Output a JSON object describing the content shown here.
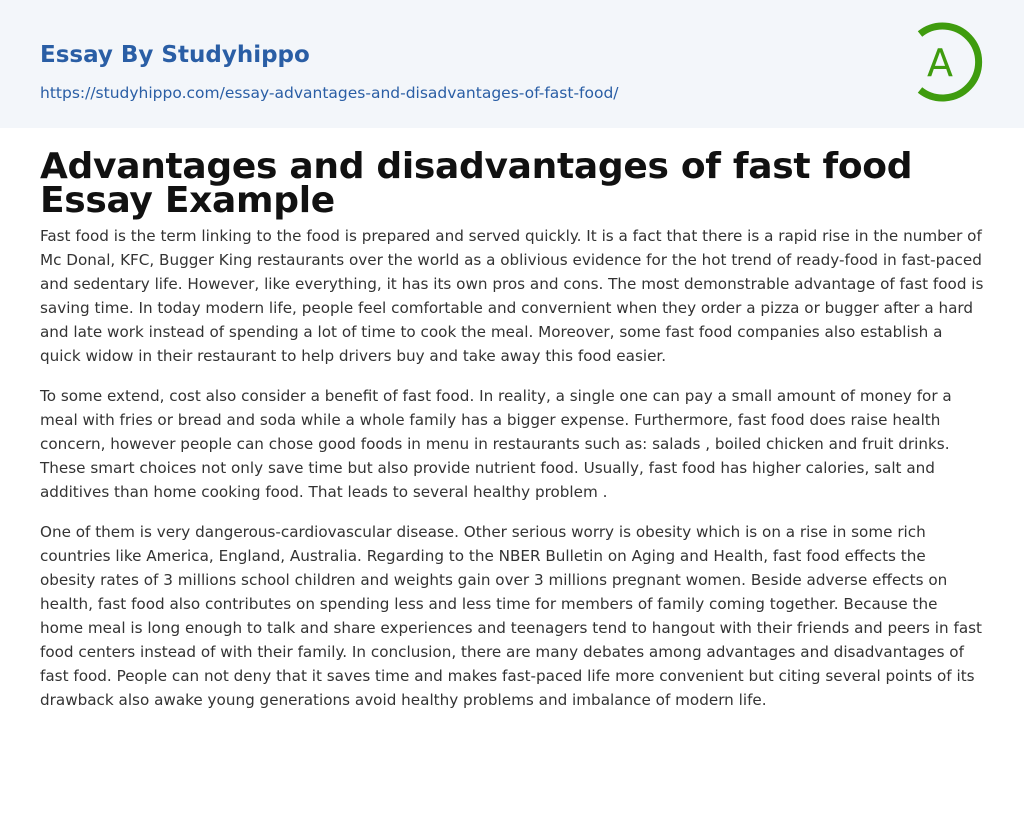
{
  "header": {
    "brand": "Essay By Studyhippo",
    "url": "https://studyhippo.com/essay-advantages-and-disadvantages-of-fast-food/",
    "logo_letter": "A",
    "logo_color": "#3f9c0e",
    "link_color": "#2a5ea5"
  },
  "article": {
    "title": "Advantages and disadvantages of fast food Essay Example",
    "paragraphs": [
      "Fast food is the term linking to the food is prepared and served quickly. It is a fact that there is a rapid rise in the number of Mc Donal, KFC, Bugger King restaurants over the world as a oblivious evidence for the hot trend of ready-food in fast-paced and sedentary life. However, like everything, it has its own pros and cons. The most demonstrable advantage of fast food is saving time. In today modern life, people feel comfortable and convernient when they order a pizza or bugger after a hard and late work instead of spending a lot of time to cook the meal. Moreover, some fast food companies also establish a quick widow in their restaurant to help drivers buy and take away this food easier.",
      "To some extend, cost also consider a benefit of fast food. In reality, a single one can pay a small amount of money for a meal with fries or bread and soda while a whole family has a bigger expense. Furthermore, fast food does raise health concern, however people can chose good foods in menu in restaurants such as: salads , boiled chicken and fruit drinks. These smart choices not only save time but also provide nutrient food. Usually, fast food has higher calories, salt and additives than home cooking food. That leads to several healthy problem .",
      "One of them is very dangerous-cardiovascular disease. Other serious worry is obesity which is on a rise in some rich countries like America, England, Australia. Regarding to the NBER Bulletin on Aging and Health, fast food effects the obesity rates of 3 millions school children and weights gain over 3 millions pregnant women. Beside adverse effects on health, fast food also contributes on spending less and less time for members of family coming together. Because the home meal is long enough to talk and share experiences and teenagers tend to hangout with their friends and peers in fast food centers instead of with their family. In conclusion, there are many debates among advantages and disadvantages of fast food. People can not deny that it saves time and makes fast-paced life more convenient but citing several points of its drawback also awake young generations avoid healthy problems and imbalance of modern life."
    ]
  }
}
